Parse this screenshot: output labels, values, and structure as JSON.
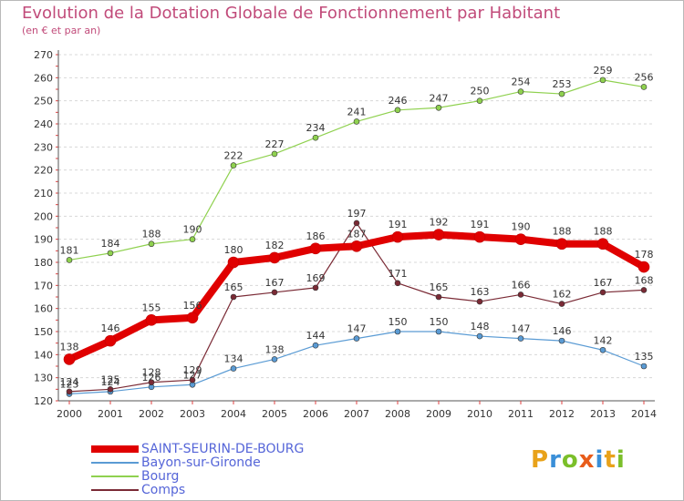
{
  "title": "Evolution de la Dotation Globale de Fonctionnement par Habitant",
  "subtitle": "(en € et par an)",
  "logo": {
    "letters": [
      "P",
      "r",
      "o",
      "x",
      "i",
      "t",
      "i"
    ],
    "colors": [
      "#e8a21a",
      "#3a8fd8",
      "#7bbf2a",
      "#e85c1a",
      "#3a8fd8",
      "#e8a21a",
      "#7bbf2a"
    ]
  },
  "chart_data": {
    "type": "line",
    "title": "Evolution de la Dotation Globale de Fonctionnement par Habitant",
    "xlabel": "",
    "ylabel": "",
    "x": [
      "2000",
      "2001",
      "2002",
      "2003",
      "2004",
      "2005",
      "2006",
      "2007",
      "2008",
      "2009",
      "2010",
      "2011",
      "2012",
      "2013",
      "2014"
    ],
    "ylim": [
      120,
      270
    ],
    "yticks": [
      120,
      130,
      140,
      150,
      160,
      170,
      180,
      190,
      200,
      210,
      220,
      230,
      240,
      250,
      260,
      270
    ],
    "grid": "horizontal dashed",
    "legend_position": "bottom-left",
    "series": [
      {
        "name": "SAINT-SEURIN-DE-BOURG",
        "color": "#e00000",
        "values": [
          138,
          146,
          155,
          156,
          180,
          182,
          186,
          187,
          191,
          192,
          191,
          190,
          188,
          188,
          178
        ]
      },
      {
        "name": "Bayon-sur-Gironde",
        "color": "#5a9bd4",
        "values": [
          123,
          124,
          126,
          127,
          134,
          138,
          144,
          147,
          150,
          150,
          148,
          147,
          146,
          142,
          135
        ]
      },
      {
        "name": "Bourg",
        "color": "#8fd14f",
        "values": [
          181,
          184,
          188,
          190,
          222,
          227,
          234,
          241,
          246,
          247,
          250,
          254,
          253,
          259,
          256
        ]
      },
      {
        "name": "Comps",
        "color": "#7a2a35",
        "values": [
          124,
          125,
          128,
          129,
          165,
          167,
          169,
          197,
          171,
          165,
          163,
          166,
          162,
          167,
          168
        ]
      }
    ]
  }
}
